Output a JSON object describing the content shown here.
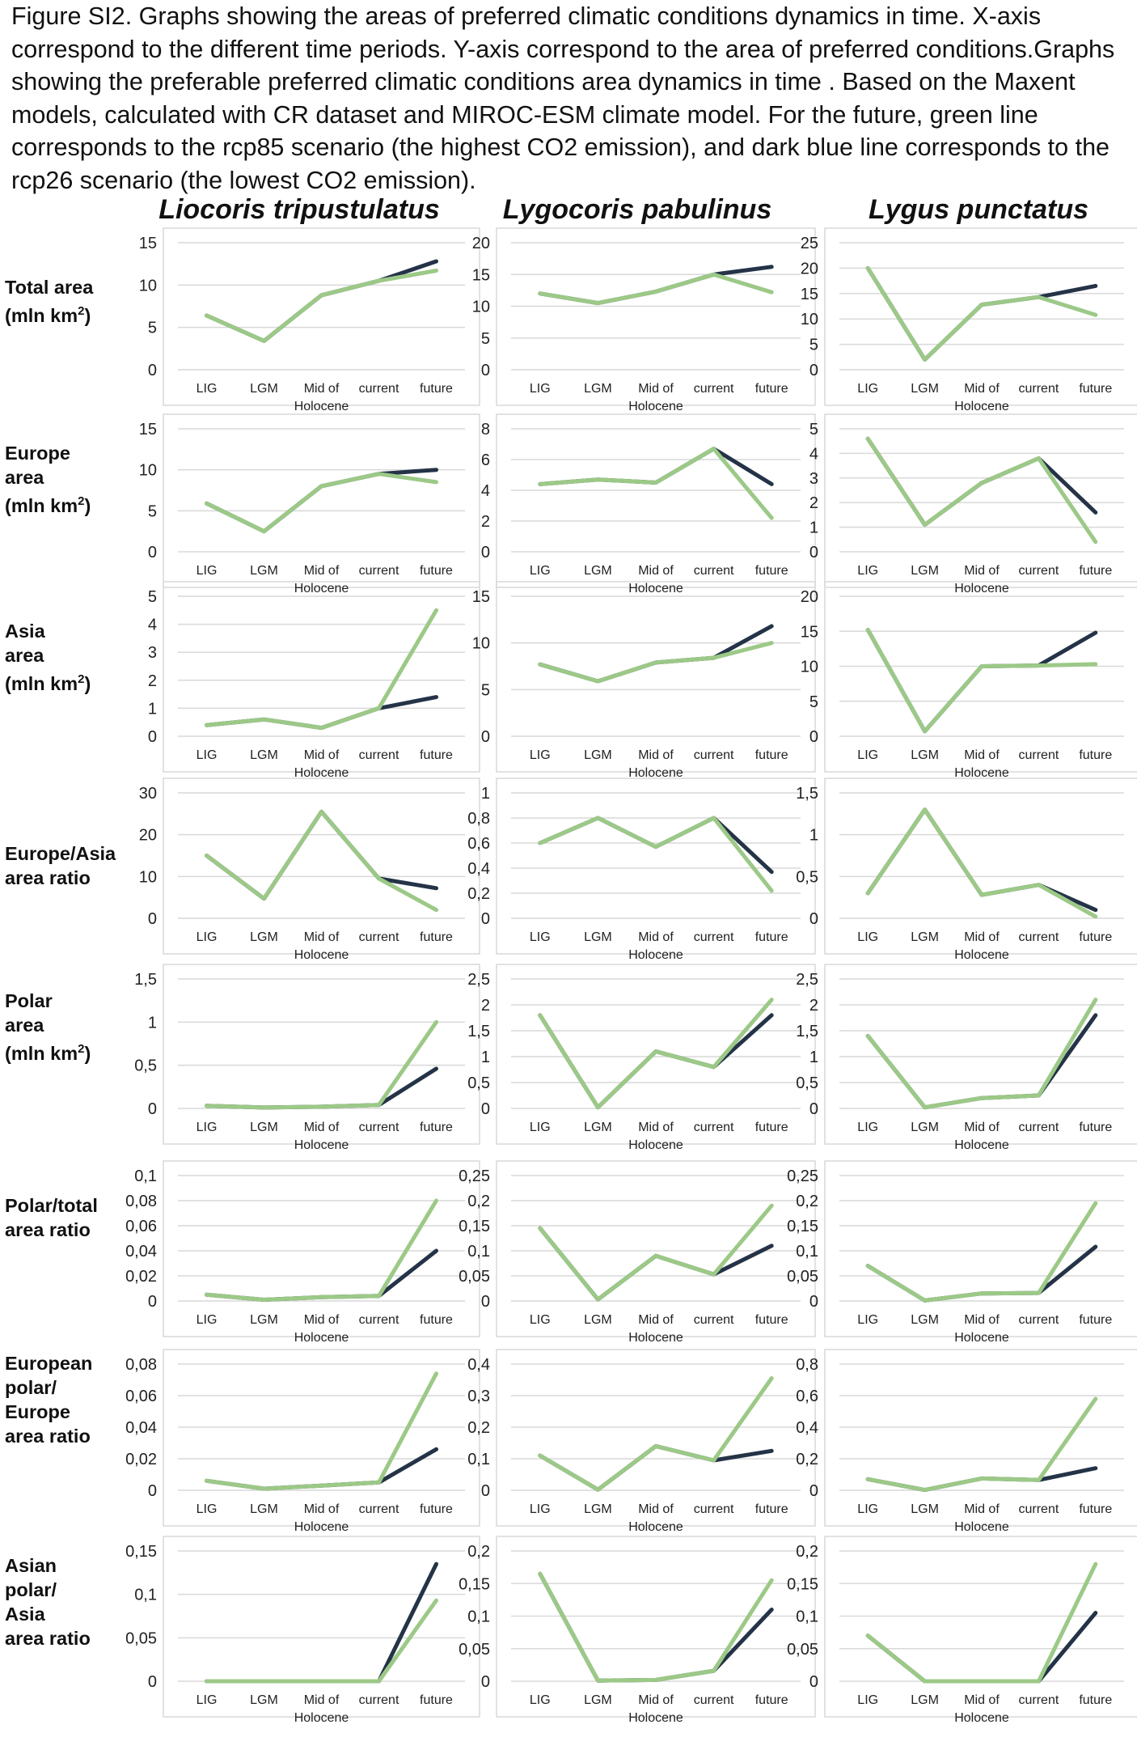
{
  "caption": "Figure SI2. Graphs showing the areas of preferred climatic conditions dynamics in time. X-axis correspond to the different time periods. Y-axis correspond to the area of preferred conditions.Graphs showing the preferable preferred climatic conditions area dynamics in time . Based on the Maxent models, calculated with CR dataset and MIROC-ESM climate model. For the future, green line corresponds to the rcp85 scenario (the highest CO2 emission), and dark blue line corresponds to the rcp26 scenario (the lowest CO2 emission).",
  "species": [
    "Liocoris tripustulatus",
    "Lygocoris pabulinus",
    "Lygus punctatus"
  ],
  "row_labels": [
    {
      "lines": [
        "Total area",
        "(mln km"
      ],
      "sup": "2",
      "close": ")"
    },
    {
      "lines": [
        "Europe",
        "area",
        "(mln km"
      ],
      "sup": "2",
      "close": ")"
    },
    {
      "lines": [
        "Asia",
        "area",
        "(mln km"
      ],
      "sup": "2",
      "close": ")"
    },
    {
      "lines": [
        "Europe/Asia",
        "area ratio"
      ],
      "sup": "",
      "close": ""
    },
    {
      "lines": [
        "Polar",
        "area",
        "(mln km"
      ],
      "sup": "2",
      "close": ")"
    },
    {
      "lines": [
        "Polar/total",
        "area ratio"
      ],
      "sup": "",
      "close": ""
    },
    {
      "lines": [
        "European",
        "polar/",
        "Europe",
        "area ratio"
      ],
      "sup": "",
      "close": ""
    },
    {
      "lines": [
        "Asian",
        "polar/",
        "Asia",
        "area ratio"
      ],
      "sup": "",
      "close": ""
    }
  ],
  "colors": {
    "rcp85": "#9cc987",
    "rcp26": "#243347",
    "grid": "#d9d9d9",
    "frame": "#d9d9d9"
  },
  "chart_data": [
    {
      "type": "line",
      "row": 0,
      "col": 0,
      "categories": [
        "LIG",
        "LGM",
        "Mid of Holocene",
        "current",
        "future"
      ],
      "yticks": [
        "15",
        "10",
        "5",
        "0"
      ],
      "ylim": [
        0,
        15
      ],
      "series": [
        {
          "name": "rcp85",
          "values": [
            6.4,
            3.4,
            8.8,
            10.5,
            11.7
          ]
        },
        {
          "name": "rcp26",
          "values": [
            6.4,
            3.4,
            8.8,
            10.5,
            12.8
          ]
        }
      ]
    },
    {
      "type": "line",
      "row": 0,
      "col": 1,
      "categories": [
        "LIG",
        "LGM",
        "Mid of Holocene",
        "current",
        "future"
      ],
      "yticks": [
        "20",
        "15",
        "10",
        "5",
        "0"
      ],
      "ylim": [
        0,
        20
      ],
      "series": [
        {
          "name": "rcp85",
          "values": [
            12,
            10.5,
            12.3,
            15,
            12.2
          ]
        },
        {
          "name": "rcp26",
          "values": [
            12,
            10.5,
            12.3,
            15,
            16.2
          ]
        }
      ]
    },
    {
      "type": "line",
      "row": 0,
      "col": 2,
      "categories": [
        "LIG",
        "LGM",
        "Mid of Holocene",
        "current",
        "future"
      ],
      "yticks": [
        "25",
        "20",
        "15",
        "10",
        "5",
        "0"
      ],
      "ylim": [
        0,
        25
      ],
      "series": [
        {
          "name": "rcp85",
          "values": [
            20,
            2,
            12.8,
            14.3,
            10.8
          ]
        },
        {
          "name": "rcp26",
          "values": [
            20,
            2,
            12.8,
            14.3,
            16.5
          ]
        }
      ]
    },
    {
      "type": "line",
      "row": 1,
      "col": 0,
      "categories": [
        "LIG",
        "LGM",
        "Mid of Holocene",
        "current",
        "future"
      ],
      "yticks": [
        "15",
        "10",
        "5",
        "0"
      ],
      "ylim": [
        0,
        15
      ],
      "series": [
        {
          "name": "rcp85",
          "values": [
            5.9,
            2.5,
            8,
            9.5,
            8.5
          ]
        },
        {
          "name": "rcp26",
          "values": [
            5.9,
            2.5,
            8,
            9.5,
            10
          ]
        }
      ]
    },
    {
      "type": "line",
      "row": 1,
      "col": 1,
      "categories": [
        "LIG",
        "LGM",
        "Mid of Holocene",
        "current",
        "future"
      ],
      "yticks": [
        "8",
        "6",
        "4",
        "2",
        "0"
      ],
      "ylim": [
        0,
        8
      ],
      "series": [
        {
          "name": "rcp85",
          "values": [
            4.4,
            4.7,
            4.5,
            6.7,
            2.2
          ]
        },
        {
          "name": "rcp26",
          "values": [
            4.4,
            4.7,
            4.5,
            6.7,
            4.4
          ]
        }
      ]
    },
    {
      "type": "line",
      "row": 1,
      "col": 2,
      "categories": [
        "LIG",
        "LGM",
        "Mid of Holocene",
        "current",
        "future"
      ],
      "yticks": [
        "5",
        "4",
        "3",
        "2",
        "1",
        "0"
      ],
      "ylim": [
        0,
        5
      ],
      "series": [
        {
          "name": "rcp85",
          "values": [
            4.6,
            1.1,
            2.8,
            3.8,
            0.4
          ]
        },
        {
          "name": "rcp26",
          "values": [
            4.6,
            1.1,
            2.8,
            3.8,
            1.6
          ]
        }
      ]
    },
    {
      "type": "line",
      "row": 2,
      "col": 0,
      "categories": [
        "LIG",
        "LGM",
        "Mid of Holocene",
        "current",
        "future"
      ],
      "yticks": [
        "5",
        "4",
        "3",
        "2",
        "1",
        "0"
      ],
      "ylim": [
        0,
        5
      ],
      "series": [
        {
          "name": "rcp85",
          "values": [
            0.4,
            0.6,
            0.3,
            1,
            4.5
          ]
        },
        {
          "name": "rcp26",
          "values": [
            0.4,
            0.6,
            0.3,
            1,
            1.4
          ]
        }
      ]
    },
    {
      "type": "line",
      "row": 2,
      "col": 1,
      "categories": [
        "LIG",
        "LGM",
        "Mid of Holocene",
        "current",
        "future"
      ],
      "yticks": [
        "15",
        "10",
        "5",
        "0"
      ],
      "ylim": [
        0,
        15
      ],
      "series": [
        {
          "name": "rcp85",
          "values": [
            7.7,
            5.9,
            7.9,
            8.4,
            10
          ]
        },
        {
          "name": "rcp26",
          "values": [
            7.7,
            5.9,
            7.9,
            8.4,
            11.8
          ]
        }
      ]
    },
    {
      "type": "line",
      "row": 2,
      "col": 2,
      "categories": [
        "LIG",
        "LGM",
        "Mid of Holocene",
        "current",
        "future"
      ],
      "yticks": [
        "20",
        "15",
        "10",
        "5",
        "0"
      ],
      "ylim": [
        0,
        20
      ],
      "series": [
        {
          "name": "rcp85",
          "values": [
            15.2,
            0.7,
            10,
            10.1,
            10.3
          ]
        },
        {
          "name": "rcp26",
          "values": [
            15.2,
            0.7,
            10,
            10.1,
            14.8
          ]
        }
      ]
    },
    {
      "type": "line",
      "row": 3,
      "col": 0,
      "categories": [
        "LIG",
        "LGM",
        "Mid of Holocene",
        "current",
        "future"
      ],
      "yticks": [
        "30",
        "20",
        "10",
        "0"
      ],
      "ylim": [
        0,
        30
      ],
      "series": [
        {
          "name": "rcp85",
          "values": [
            15,
            4.7,
            25.5,
            9.5,
            2
          ]
        },
        {
          "name": "rcp26",
          "values": [
            15,
            4.7,
            25.5,
            9.5,
            7.2
          ]
        }
      ]
    },
    {
      "type": "line",
      "row": 3,
      "col": 1,
      "categories": [
        "LIG",
        "LGM",
        "Mid of Holocene",
        "current",
        "future"
      ],
      "yticks": [
        "1",
        "0,8",
        "0,6",
        "0,4",
        "0,2",
        "0"
      ],
      "ylim": [
        0,
        1
      ],
      "series": [
        {
          "name": "rcp85",
          "values": [
            0.6,
            0.8,
            0.57,
            0.8,
            0.22
          ]
        },
        {
          "name": "rcp26",
          "values": [
            0.6,
            0.8,
            0.57,
            0.8,
            0.37
          ]
        }
      ]
    },
    {
      "type": "line",
      "row": 3,
      "col": 2,
      "categories": [
        "LIG",
        "LGM",
        "Mid of Holocene",
        "current",
        "future"
      ],
      "yticks": [
        "1,5",
        "1",
        "0,5",
        "0"
      ],
      "ylim": [
        0,
        1.5
      ],
      "series": [
        {
          "name": "rcp85",
          "values": [
            0.3,
            1.3,
            0.28,
            0.4,
            0.02
          ]
        },
        {
          "name": "rcp26",
          "values": [
            0.3,
            1.3,
            0.28,
            0.4,
            0.1
          ]
        }
      ]
    },
    {
      "type": "line",
      "row": 4,
      "col": 0,
      "categories": [
        "LIG",
        "LGM",
        "Mid of Holocene",
        "current",
        "future"
      ],
      "yticks": [
        "1,5",
        "1",
        "0,5",
        "0"
      ],
      "ylim": [
        0,
        1.5
      ],
      "series": [
        {
          "name": "rcp85",
          "values": [
            0.03,
            0.01,
            0.02,
            0.04,
            1
          ]
        },
        {
          "name": "rcp26",
          "values": [
            0.03,
            0.01,
            0.02,
            0.04,
            0.46
          ]
        }
      ]
    },
    {
      "type": "line",
      "row": 4,
      "col": 1,
      "categories": [
        "LIG",
        "LGM",
        "Mid of Holocene",
        "current",
        "future"
      ],
      "yticks": [
        "2,5",
        "2",
        "1,5",
        "1",
        "0,5",
        "0"
      ],
      "ylim": [
        0,
        2.5
      ],
      "series": [
        {
          "name": "rcp85",
          "values": [
            1.8,
            0.02,
            1.1,
            0.8,
            2.1
          ]
        },
        {
          "name": "rcp26",
          "values": [
            1.8,
            0.02,
            1.1,
            0.8,
            1.8
          ]
        }
      ]
    },
    {
      "type": "line",
      "row": 4,
      "col": 2,
      "categories": [
        "LIG",
        "LGM",
        "Mid of Holocene",
        "current",
        "future"
      ],
      "yticks": [
        "2,5",
        "2",
        "1,5",
        "1",
        "0,5",
        "0"
      ],
      "ylim": [
        0,
        2.5
      ],
      "series": [
        {
          "name": "rcp85",
          "values": [
            1.4,
            0.02,
            0.2,
            0.25,
            2.1
          ]
        },
        {
          "name": "rcp26",
          "values": [
            1.4,
            0.02,
            0.2,
            0.25,
            1.8
          ]
        }
      ]
    },
    {
      "type": "line",
      "row": 5,
      "col": 0,
      "categories": [
        "LIG",
        "LGM",
        "Mid of Holocene",
        "current",
        "future"
      ],
      "yticks": [
        "0,1",
        "0,08",
        "0,06",
        "0,04",
        "0,02",
        "0"
      ],
      "ylim": [
        0,
        0.1
      ],
      "series": [
        {
          "name": "rcp85",
          "values": [
            0.005,
            0.001,
            0.003,
            0.004,
            0.08
          ]
        },
        {
          "name": "rcp26",
          "values": [
            0.005,
            0.001,
            0.003,
            0.004,
            0.04
          ]
        }
      ]
    },
    {
      "type": "line",
      "row": 5,
      "col": 1,
      "categories": [
        "LIG",
        "LGM",
        "Mid of Holocene",
        "current",
        "future"
      ],
      "yticks": [
        "0,25",
        "0,2",
        "0,15",
        "0,1",
        "0,05",
        "0"
      ],
      "ylim": [
        0,
        0.25
      ],
      "series": [
        {
          "name": "rcp85",
          "values": [
            0.145,
            0.003,
            0.09,
            0.053,
            0.19
          ]
        },
        {
          "name": "rcp26",
          "values": [
            0.145,
            0.003,
            0.09,
            0.053,
            0.11
          ]
        }
      ]
    },
    {
      "type": "line",
      "row": 5,
      "col": 2,
      "categories": [
        "LIG",
        "LGM",
        "Mid of Holocene",
        "current",
        "future"
      ],
      "yticks": [
        "0,25",
        "0,2",
        "0,15",
        "0,1",
        "0,05",
        "0"
      ],
      "ylim": [
        0,
        0.25
      ],
      "series": [
        {
          "name": "rcp85",
          "values": [
            0.07,
            0.001,
            0.015,
            0.016,
            0.195
          ]
        },
        {
          "name": "rcp26",
          "values": [
            0.07,
            0.001,
            0.015,
            0.016,
            0.108
          ]
        }
      ]
    },
    {
      "type": "line",
      "row": 6,
      "col": 0,
      "categories": [
        "LIG",
        "LGM",
        "Mid of Holocene",
        "current",
        "future"
      ],
      "yticks": [
        "0,08",
        "0,06",
        "0,04",
        "0,02",
        "0"
      ],
      "ylim": [
        0,
        0.08
      ],
      "series": [
        {
          "name": "rcp85",
          "values": [
            0.006,
            0.001,
            0.003,
            0.005,
            0.074
          ]
        },
        {
          "name": "rcp26",
          "values": [
            0.006,
            0.001,
            0.003,
            0.005,
            0.026
          ]
        }
      ]
    },
    {
      "type": "line",
      "row": 6,
      "col": 1,
      "categories": [
        "LIG",
        "LGM",
        "Mid of Holocene",
        "current",
        "future"
      ],
      "yticks": [
        "0,4",
        "0,3",
        "0,2",
        "0,1",
        "0"
      ],
      "ylim": [
        0,
        0.4
      ],
      "series": [
        {
          "name": "rcp85",
          "values": [
            0.11,
            0.002,
            0.14,
            0.095,
            0.355
          ]
        },
        {
          "name": "rcp26",
          "values": [
            0.11,
            0.002,
            0.14,
            0.095,
            0.125
          ]
        }
      ]
    },
    {
      "type": "line",
      "row": 6,
      "col": 2,
      "categories": [
        "LIG",
        "LGM",
        "Mid of Holocene",
        "current",
        "future"
      ],
      "yticks": [
        "0,8",
        "0,6",
        "0,4",
        "0,2",
        "0"
      ],
      "ylim": [
        0,
        0.8
      ],
      "series": [
        {
          "name": "rcp85",
          "values": [
            0.07,
            0.002,
            0.075,
            0.065,
            0.58
          ]
        },
        {
          "name": "rcp26",
          "values": [
            0.07,
            0.002,
            0.075,
            0.065,
            0.14
          ]
        }
      ]
    },
    {
      "type": "line",
      "row": 7,
      "col": 0,
      "categories": [
        "LIG",
        "LGM",
        "Mid of Holocene",
        "current",
        "future"
      ],
      "yticks": [
        "0,15",
        "0,1",
        "0,05",
        "0"
      ],
      "ylim": [
        0,
        0.15
      ],
      "series": [
        {
          "name": "rcp85",
          "values": [
            0,
            0,
            0,
            0,
            0.093
          ]
        },
        {
          "name": "rcp26",
          "values": [
            0,
            0,
            0,
            0,
            0.135
          ]
        }
      ]
    },
    {
      "type": "line",
      "row": 7,
      "col": 1,
      "categories": [
        "LIG",
        "LGM",
        "Mid of Holocene",
        "current",
        "future"
      ],
      "yticks": [
        "0,2",
        "0,15",
        "0,1",
        "0,05",
        "0"
      ],
      "ylim": [
        0,
        0.2
      ],
      "series": [
        {
          "name": "rcp85",
          "values": [
            0.165,
            0.001,
            0.002,
            0.016,
            0.155
          ]
        },
        {
          "name": "rcp26",
          "values": [
            0.165,
            0.001,
            0.002,
            0.016,
            0.11
          ]
        }
      ]
    },
    {
      "type": "line",
      "row": 7,
      "col": 2,
      "categories": [
        "LIG",
        "LGM",
        "Mid of Holocene",
        "current",
        "future"
      ],
      "yticks": [
        "0,2",
        "0,15",
        "0,1",
        "0,05",
        "0"
      ],
      "ylim": [
        0,
        0.2
      ],
      "series": [
        {
          "name": "rcp85",
          "values": [
            0.07,
            0,
            0,
            0,
            0.18
          ]
        },
        {
          "name": "rcp26",
          "values": [
            0.07,
            0,
            0,
            0,
            0.105
          ]
        }
      ]
    }
  ]
}
